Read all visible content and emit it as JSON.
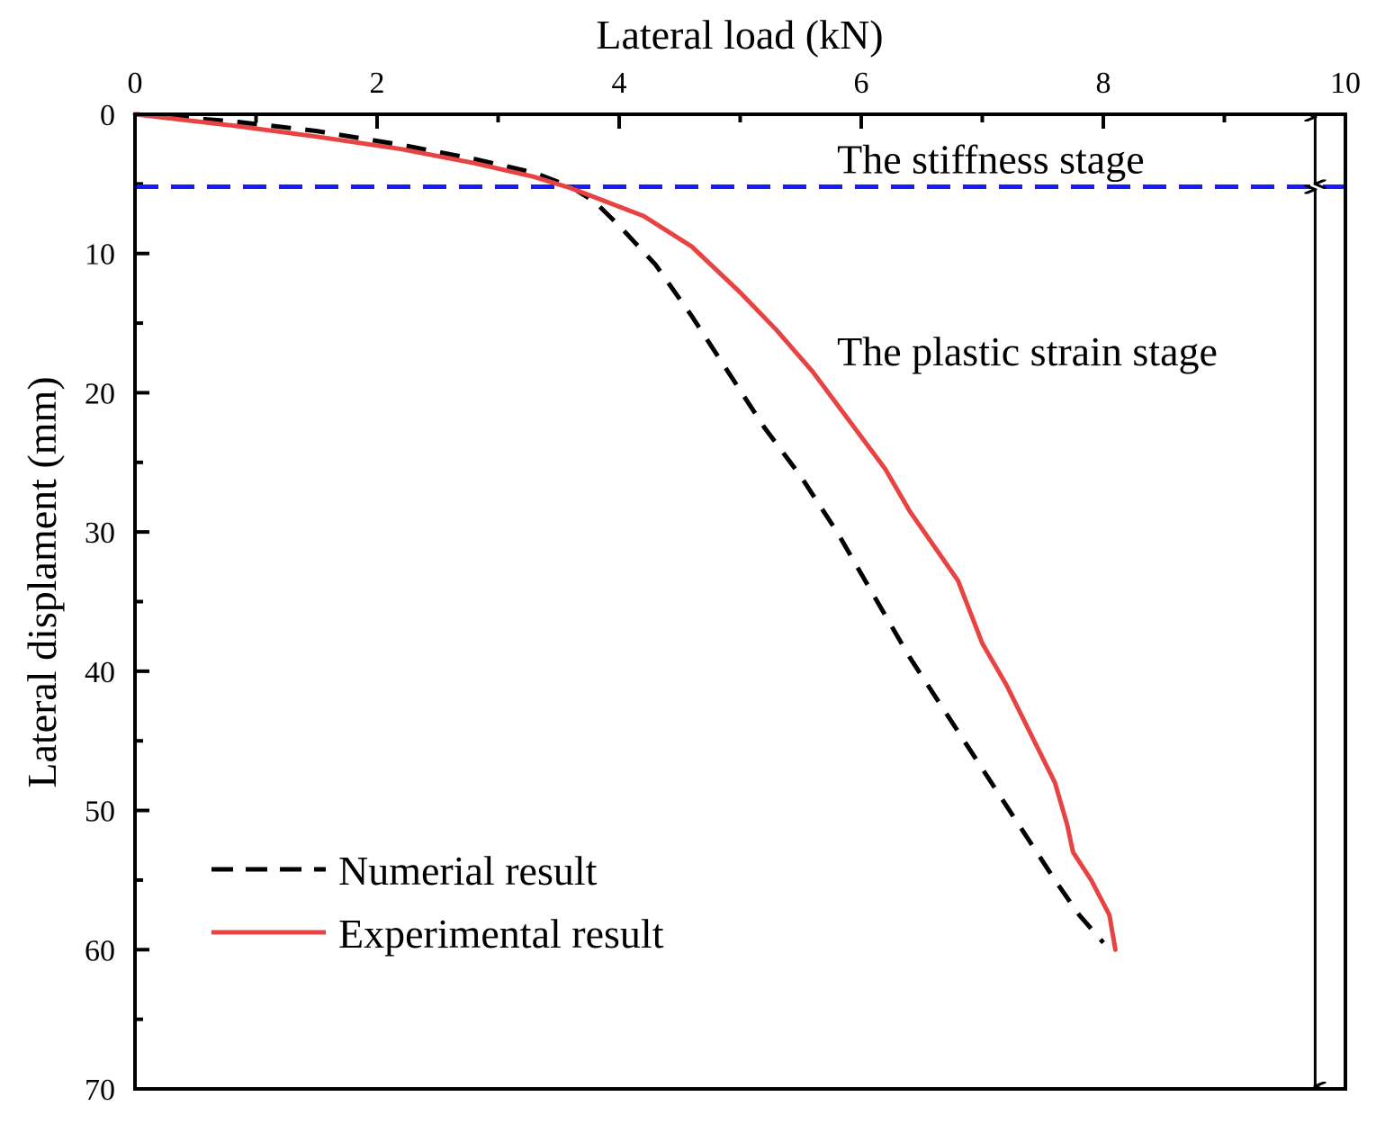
{
  "chart_data": {
    "type": "line",
    "xlabel": "Lateral load (kN)",
    "ylabel": "Lateral displament (mm)",
    "x_axis_position": "top",
    "y_axis_inverted": true,
    "xlim": [
      0,
      10
    ],
    "ylim": [
      0,
      70
    ],
    "x_ticks": [
      0,
      2,
      4,
      6,
      8,
      10
    ],
    "y_ticks": [
      0,
      10,
      20,
      30,
      40,
      50,
      60,
      70
    ],
    "x_tick_labels": [
      "0",
      "2",
      "4",
      "6",
      "8",
      "10"
    ],
    "y_tick_labels": [
      "0",
      "10",
      "20",
      "30",
      "40",
      "50",
      "60",
      "70"
    ],
    "series": [
      {
        "name": "Numerial result",
        "color": "#000000",
        "style": "dashed",
        "x": [
          0,
          0.8,
          1.5,
          2.2,
          2.8,
          3.3,
          3.6,
          3.8,
          4.0,
          4.3,
          4.6,
          4.9,
          5.2,
          5.5,
          5.8,
          6.1,
          6.4,
          6.7,
          7.0,
          7.3,
          7.6,
          7.8,
          8.0
        ],
        "y": [
          0,
          0.5,
          1.2,
          2.2,
          3.2,
          4.2,
          5.2,
          6.3,
          8.0,
          10.8,
          14.5,
          18.5,
          22.5,
          26.0,
          30.0,
          34.5,
          39.0,
          43.0,
          47.0,
          51.0,
          55.0,
          57.5,
          59.5
        ]
      },
      {
        "name": "Experimental result",
        "color": "#e84343",
        "style": "solid",
        "x": [
          0,
          0.8,
          1.5,
          2.2,
          2.8,
          3.3,
          3.6,
          3.9,
          4.2,
          4.6,
          5.0,
          5.3,
          5.6,
          5.9,
          6.2,
          6.4,
          6.6,
          6.8,
          7.0,
          7.2,
          7.4,
          7.6,
          7.7,
          7.75,
          7.9,
          8.05,
          8.1
        ],
        "y": [
          0,
          0.8,
          1.6,
          2.5,
          3.5,
          4.5,
          5.3,
          6.3,
          7.3,
          9.5,
          12.8,
          15.5,
          18.5,
          22.0,
          25.5,
          28.5,
          31.0,
          33.5,
          38.0,
          41.0,
          44.5,
          48.0,
          51.0,
          53.0,
          55.0,
          57.5,
          60.0
        ]
      }
    ],
    "reference_lines": [
      {
        "type": "horizontal",
        "y": 5.2,
        "color": "#1a1aff",
        "style": "dashed"
      }
    ],
    "annotations": [
      {
        "text": "The stiffness stage",
        "x": 5.8,
        "y": 3.2
      },
      {
        "text": "The plastic strain stage",
        "x": 5.8,
        "y": 17.0
      }
    ],
    "stage_arrows": [
      {
        "x": 9.75,
        "y_from": 0,
        "y_to": 5.2
      },
      {
        "x": 9.75,
        "y_from": 5.2,
        "y_to": 70
      }
    ],
    "legend": {
      "position": "bottom-left",
      "entries": [
        "Numerial result",
        "Experimental result"
      ]
    }
  }
}
